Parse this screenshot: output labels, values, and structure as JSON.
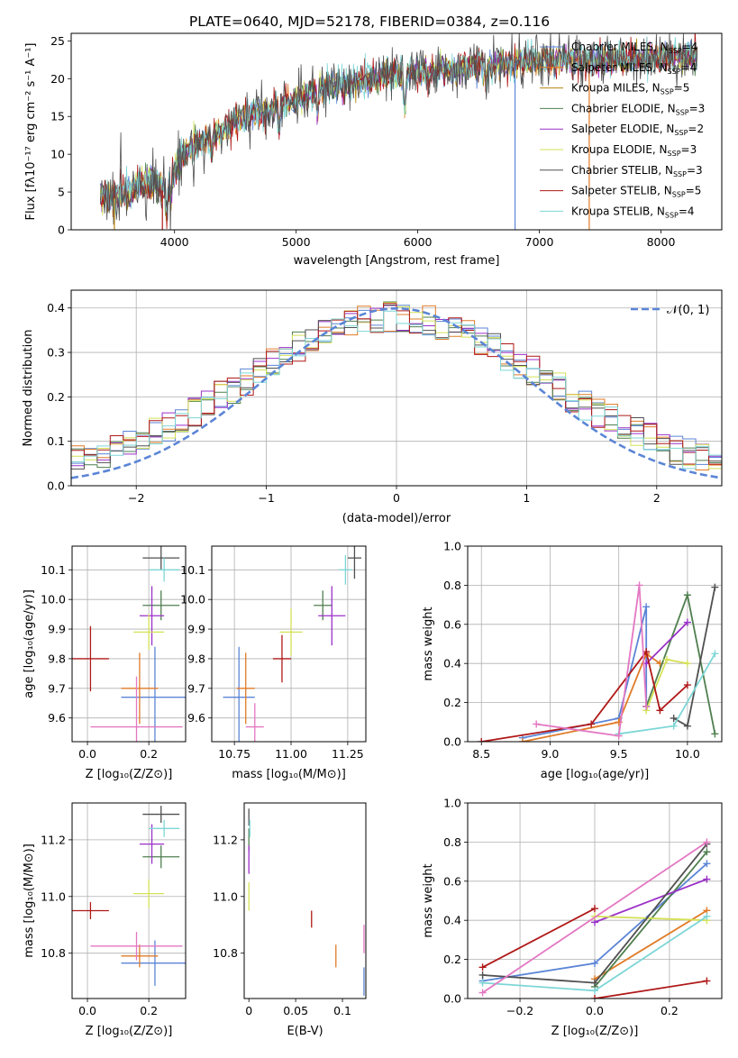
{
  "chart_data": [
    {
      "type": "line",
      "title": "PLATE=0640, MJD=52178, FIBERID=0384, z=0.116",
      "xlabel": "wavelength [Angstrom, rest frame]",
      "ylabel": "Flux [fλ10⁻¹⁷ erg cm⁻² s⁻¹ A⁻¹]",
      "xlim": [
        3150,
        8500
      ],
      "ylim": [
        0,
        26
      ],
      "xticks": [
        4000,
        5000,
        6000,
        7000,
        8000
      ],
      "yticks": [
        0,
        5,
        10,
        15,
        20,
        25
      ],
      "grid": false,
      "legend_position": "right",
      "series": [
        {
          "name": "Chabrier MILES, N",
          "sub": "SSP",
          "suffix": "=4",
          "color": "#5b85d6"
        },
        {
          "name": "Salpeter MILES, N",
          "sub": "SSP",
          "suffix": "=4",
          "color": "#e07b27"
        },
        {
          "name": "Kroupa MILES, N",
          "sub": "SSP",
          "suffix": "=5",
          "color": "#b8860b"
        },
        {
          "name": "Chabrier ELODIE, N",
          "sub": "SSP",
          "suffix": "=3",
          "color": "#4f7f4f"
        },
        {
          "name": "Salpeter ELODIE, N",
          "sub": "SSP",
          "suffix": "=2",
          "color": "#9b30c8"
        },
        {
          "name": "Kroupa ELODIE, N",
          "sub": "SSP",
          "suffix": "=3",
          "color": "#d4e157"
        },
        {
          "name": "Chabrier STELIB, N",
          "sub": "SSP",
          "suffix": "=3",
          "color": "#505050"
        },
        {
          "name": "Salpeter STELIB, N",
          "sub": "SSP",
          "suffix": "=5",
          "color": "#b01818"
        },
        {
          "name": "Kroupa STELIB, N",
          "sub": "SSP",
          "suffix": "=4",
          "color": "#7ed6d6"
        }
      ],
      "spectrum_knots": {
        "x": [
          3400,
          3500,
          3600,
          3700,
          3800,
          3900,
          4000,
          4100,
          4200,
          4300,
          4400,
          4500,
          4600,
          4700,
          4800,
          4900,
          5000,
          5100,
          5200,
          5300,
          5400,
          5500,
          5600,
          5700,
          5800,
          5900,
          6000,
          6100,
          6200,
          6300,
          6400,
          6500,
          6600,
          6700,
          6800,
          6900,
          7000,
          7100,
          7200,
          7300,
          7400,
          7500,
          7600,
          7700,
          7800,
          7900,
          8000,
          8100,
          8200,
          8300
        ],
        "y": [
          4.3,
          4.2,
          5.0,
          5.8,
          6.6,
          5.2,
          8.0,
          10.3,
          11.5,
          12.2,
          13.2,
          14.2,
          15.0,
          15.6,
          16.1,
          16.6,
          17.2,
          18.0,
          18.5,
          19.0,
          19.2,
          19.6,
          20.0,
          20.3,
          20.5,
          20.6,
          20.7,
          21.0,
          21.1,
          21.2,
          21.5,
          21.7,
          21.8,
          22.0,
          22.1,
          22.2,
          22.4,
          22.5,
          22.5,
          22.4,
          22.5,
          22.5,
          22.6,
          22.6,
          22.7,
          22.8,
          22.8,
          22.9,
          23.0,
          23.0
        ]
      }
    },
    {
      "type": "histogram",
      "xlabel": "(data-model)/error",
      "ylabel": "Normed distribution",
      "xlim": [
        -2.5,
        2.5
      ],
      "ylim": [
        0,
        0.44
      ],
      "xticks": [
        -2,
        -1,
        0,
        1,
        2
      ],
      "yticks": [
        0.0,
        0.1,
        0.2,
        0.3,
        0.4
      ],
      "grid": true,
      "legend": [
        "𝒩(0, 1)"
      ],
      "legend_position": "top-right",
      "reference_curve": {
        "type": "gaussian",
        "mu": 0,
        "sigma": 1,
        "color": "#5b85d6",
        "style": "dashed"
      },
      "bin_edges_range": [
        -2.5,
        2.5
      ],
      "n_bins": 50,
      "series_colors": [
        "#5b85d6",
        "#e07b27",
        "#4f7f4f",
        "#9b30c8",
        "#d4e157",
        "#505050",
        "#b01818",
        "#7ed6d6"
      ]
    },
    {
      "type": "errorbar",
      "xlabel": "Z [log₁₀(Z/Z⊙)]",
      "ylabel": "age  [log₁₀(age/yr)]",
      "xlim": [
        -0.05,
        0.32
      ],
      "ylim": [
        9.52,
        10.18
      ],
      "xticks": [
        0.0,
        0.2
      ],
      "yticks": [
        9.6,
        9.7,
        9.8,
        9.9,
        10.0,
        10.1
      ],
      "grid": true,
      "points": [
        {
          "x": 0.22,
          "y": 9.67,
          "xerr": 0.11,
          "yerr": 0.17,
          "color": "#5b85d6"
        },
        {
          "x": 0.17,
          "y": 9.7,
          "xerr": 0.06,
          "yerr": 0.12,
          "color": "#e07b27"
        },
        {
          "x": 0.24,
          "y": 9.98,
          "xerr": 0.06,
          "yerr": 0.05,
          "color": "#4f7f4f"
        },
        {
          "x": 0.21,
          "y": 9.945,
          "xerr": 0.04,
          "yerr": 0.1,
          "color": "#9b30c8"
        },
        {
          "x": 0.2,
          "y": 9.89,
          "xerr": 0.05,
          "yerr": 0.06,
          "color": "#d4e157"
        },
        {
          "x": 0.24,
          "y": 10.14,
          "xerr": 0.06,
          "yerr": 0.04,
          "color": "#505050"
        },
        {
          "x": 0.01,
          "y": 9.8,
          "xerr": 0.06,
          "yerr": 0.11,
          "color": "#b01818"
        },
        {
          "x": 0.25,
          "y": 10.1,
          "xerr": 0.05,
          "yerr": 0.04,
          "color": "#7ed6d6"
        },
        {
          "x": 0.16,
          "y": 9.57,
          "xerr": 0.15,
          "yerr": 0.17,
          "color": "#e377c2"
        }
      ]
    },
    {
      "type": "errorbar",
      "xlabel": "mass [log₁₀(M/M⊙)]",
      "xlim": [
        10.65,
        11.33
      ],
      "ylim": [
        9.52,
        10.18
      ],
      "xticks": [
        10.75,
        11.0,
        11.25
      ],
      "yticks": [
        9.6,
        9.7,
        9.8,
        9.9,
        10.0,
        10.1
      ],
      "grid": true,
      "points": [
        {
          "x": 10.77,
          "y": 9.67,
          "xerr": 0.07,
          "yerr": 0.17,
          "color": "#5b85d6"
        },
        {
          "x": 10.8,
          "y": 9.7,
          "xerr": 0.04,
          "yerr": 0.12,
          "color": "#e07b27"
        },
        {
          "x": 11.14,
          "y": 9.98,
          "xerr": 0.04,
          "yerr": 0.05,
          "color": "#4f7f4f"
        },
        {
          "x": 11.18,
          "y": 9.945,
          "xerr": 0.06,
          "yerr": 0.1,
          "color": "#9b30c8"
        },
        {
          "x": 11.0,
          "y": 9.89,
          "xerr": 0.05,
          "yerr": 0.08,
          "color": "#d4e157"
        },
        {
          "x": 11.28,
          "y": 10.14,
          "xerr": 0.03,
          "yerr": 0.07,
          "color": "#505050"
        },
        {
          "x": 10.96,
          "y": 9.8,
          "xerr": 0.04,
          "yerr": 0.08,
          "color": "#b01818"
        },
        {
          "x": 11.24,
          "y": 10.1,
          "xerr": 0.03,
          "yerr": 0.05,
          "color": "#7ed6d6"
        },
        {
          "x": 10.84,
          "y": 9.57,
          "xerr": 0.04,
          "yerr": 0.08,
          "color": "#e377c2"
        }
      ]
    },
    {
      "type": "line",
      "xlabel": "age  [log₁₀(age/yr)]",
      "ylabel": "mass weight",
      "xlim": [
        8.4,
        10.25
      ],
      "ylim": [
        0,
        1.0
      ],
      "xticks": [
        8.5,
        9.0,
        9.5,
        10.0
      ],
      "yticks": [
        0.0,
        0.2,
        0.4,
        0.6,
        0.8,
        1.0
      ],
      "grid": true,
      "series": [
        {
          "color": "#5b85d6",
          "x": [
            8.8,
            9.5,
            9.7,
            9.7
          ],
          "y": [
            0.02,
            0.12,
            0.69,
            0.18
          ]
        },
        {
          "color": "#e07b27",
          "x": [
            8.8,
            9.5,
            9.7,
            9.8
          ],
          "y": [
            0.0,
            0.1,
            0.45,
            0.4
          ]
        },
        {
          "color": "#4f7f4f",
          "x": [
            9.7,
            10.0,
            10.2
          ],
          "y": [
            0.18,
            0.75,
            0.04
          ]
        },
        {
          "color": "#9b30c8",
          "x": [
            9.7,
            10.0
          ],
          "y": [
            0.4,
            0.61
          ]
        },
        {
          "color": "#d4e157",
          "x": [
            9.7,
            9.85,
            10.0
          ],
          "y": [
            0.16,
            0.42,
            0.4
          ]
        },
        {
          "color": "#505050",
          "x": [
            9.9,
            10.0,
            10.2
          ],
          "y": [
            0.12,
            0.08,
            0.79
          ]
        },
        {
          "color": "#b01818",
          "x": [
            8.5,
            9.3,
            9.7,
            9.8,
            10.0
          ],
          "y": [
            0.0,
            0.09,
            0.46,
            0.16,
            0.29
          ]
        },
        {
          "color": "#7ed6d6",
          "x": [
            9.5,
            9.9,
            10.2
          ],
          "y": [
            0.04,
            0.08,
            0.45
          ]
        },
        {
          "color": "#e377c2",
          "x": [
            8.9,
            9.5,
            9.65,
            9.7
          ],
          "y": [
            0.09,
            0.03,
            0.8,
            0.18
          ]
        }
      ]
    },
    {
      "type": "errorbar",
      "xlabel": "Z [log₁₀(Z/Z⊙)]",
      "ylabel": "mass [log₁₀(M/M⊙)]",
      "xlim": [
        -0.05,
        0.32
      ],
      "ylim": [
        10.64,
        11.33
      ],
      "xticks": [
        0.0,
        0.2
      ],
      "yticks": [
        10.8,
        11.0,
        11.2
      ],
      "grid": true,
      "points": [
        {
          "x": 0.22,
          "y": 10.765,
          "xerr": 0.11,
          "yerr": 0.08,
          "color": "#5b85d6"
        },
        {
          "x": 0.17,
          "y": 10.79,
          "xerr": 0.06,
          "yerr": 0.04,
          "color": "#e07b27"
        },
        {
          "x": 0.24,
          "y": 11.14,
          "xerr": 0.06,
          "yerr": 0.04,
          "color": "#4f7f4f"
        },
        {
          "x": 0.21,
          "y": 11.185,
          "xerr": 0.04,
          "yerr": 0.07,
          "color": "#9b30c8"
        },
        {
          "x": 0.2,
          "y": 11.01,
          "xerr": 0.05,
          "yerr": 0.05,
          "color": "#d4e157"
        },
        {
          "x": 0.24,
          "y": 11.29,
          "xerr": 0.06,
          "yerr": 0.03,
          "color": "#505050"
        },
        {
          "x": 0.01,
          "y": 10.95,
          "xerr": 0.06,
          "yerr": 0.03,
          "color": "#b01818"
        },
        {
          "x": 0.25,
          "y": 11.24,
          "xerr": 0.05,
          "yerr": 0.03,
          "color": "#7ed6d6"
        },
        {
          "x": 0.16,
          "y": 10.825,
          "xerr": 0.15,
          "yerr": 0.05,
          "color": "#e377c2"
        }
      ]
    },
    {
      "type": "errorbar",
      "xlabel": "E(B-V)",
      "xlim": [
        -0.005,
        0.125
      ],
      "ylim": [
        10.64,
        11.33
      ],
      "xticks": [
        0.0,
        0.05,
        0.1
      ],
      "yticks": [
        10.8,
        11.0,
        11.2
      ],
      "grid": false,
      "points": [
        {
          "x": 0.123,
          "y": 10.7,
          "xerr": 0,
          "yerr": 0.05,
          "color": "#5b85d6"
        },
        {
          "x": 0.093,
          "y": 10.79,
          "xerr": 0,
          "yerr": 0.04,
          "color": "#e07b27"
        },
        {
          "x": 0.0,
          "y": 11.2,
          "xerr": 0,
          "yerr": 0.04,
          "color": "#4f7f4f"
        },
        {
          "x": 0.0,
          "y": 11.13,
          "xerr": 0,
          "yerr": 0.05,
          "color": "#9b30c8"
        },
        {
          "x": 0.0,
          "y": 11.0,
          "xerr": 0,
          "yerr": 0.05,
          "color": "#d4e157"
        },
        {
          "x": 0.0,
          "y": 11.28,
          "xerr": 0,
          "yerr": 0.03,
          "color": "#505050"
        },
        {
          "x": 0.067,
          "y": 10.92,
          "xerr": 0,
          "yerr": 0.03,
          "color": "#b01818"
        },
        {
          "x": 0.001,
          "y": 11.24,
          "xerr": 0,
          "yerr": 0.03,
          "color": "#7ed6d6"
        },
        {
          "x": 0.123,
          "y": 10.85,
          "xerr": 0,
          "yerr": 0.05,
          "color": "#e377c2"
        }
      ]
    },
    {
      "type": "line",
      "xlabel": "Z [log₁₀(Z/Z⊙)]",
      "ylabel": "mass weight",
      "xlim": [
        -0.34,
        0.34
      ],
      "ylim": [
        0,
        1.0
      ],
      "xticks": [
        -0.2,
        0.0,
        0.2
      ],
      "yticks": [
        0.0,
        0.2,
        0.4,
        0.6,
        0.8,
        1.0
      ],
      "grid": true,
      "series": [
        {
          "color": "#5b85d6",
          "x": [
            -0.3,
            0.0,
            0.3
          ],
          "y": [
            0.09,
            0.18,
            0.69
          ]
        },
        {
          "color": "#e07b27",
          "x": [
            0.0,
            0.3
          ],
          "y": [
            0.1,
            0.45
          ]
        },
        {
          "color": "#4f7f4f",
          "x": [
            0.0,
            0.3
          ],
          "y": [
            0.06,
            0.75
          ]
        },
        {
          "color": "#9b30c8",
          "x": [
            0.0,
            0.3
          ],
          "y": [
            0.39,
            0.61
          ]
        },
        {
          "color": "#d4e157",
          "x": [
            0.0,
            0.3
          ],
          "y": [
            0.42,
            0.4
          ]
        },
        {
          "color": "#505050",
          "x": [
            -0.3,
            0.0,
            0.3
          ],
          "y": [
            0.12,
            0.08,
            0.79
          ]
        },
        {
          "color": "#b01818",
          "x": [
            -0.3,
            0.0
          ],
          "y": [
            0.16,
            0.46
          ]
        },
        {
          "color": "#b01818",
          "x": [
            0.0,
            0.3
          ],
          "y": [
            0.0,
            0.09
          ]
        },
        {
          "color": "#7ed6d6",
          "x": [
            -0.3,
            0.0,
            0.3
          ],
          "y": [
            0.08,
            0.04,
            0.42
          ]
        },
        {
          "color": "#e377c2",
          "x": [
            -0.3,
            0.3
          ],
          "y": [
            0.03,
            0.8
          ]
        }
      ]
    }
  ]
}
